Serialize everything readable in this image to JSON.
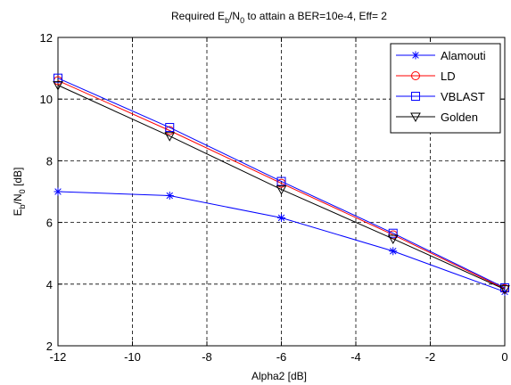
{
  "chart_data": {
    "type": "line",
    "title": {
      "prefix": "Required E",
      "sub1": "b",
      "mid": "/N",
      "sub2": "0",
      "suffix": " to attain a BER=10e-4, Eff= 2"
    },
    "xlabel": "Alpha2 [dB]",
    "ylabel": {
      "prefix": "E",
      "sub1": "b",
      "mid": "/N",
      "sub2": "0",
      "suffix": " [dB]"
    },
    "xlim": [
      -12,
      0
    ],
    "ylim": [
      2,
      12
    ],
    "xticks": [
      "-12",
      "-10",
      "-8",
      "-6",
      "-4",
      "-2",
      "0"
    ],
    "yticks": [
      "2",
      "4",
      "6",
      "8",
      "10",
      "12"
    ],
    "grid": true,
    "legend_position": "top-right",
    "x": [
      -12,
      -9,
      -6,
      -3,
      0
    ],
    "series": [
      {
        "name": "Alamouti",
        "color": "#0000ff",
        "marker": "star",
        "values": [
          7.0,
          6.87,
          6.15,
          5.07,
          3.75
        ]
      },
      {
        "name": "LD",
        "color": "#ff0000",
        "marker": "circle",
        "values": [
          10.6,
          8.98,
          7.27,
          5.6,
          3.85
        ]
      },
      {
        "name": "VBLAST",
        "color": "#0000ff",
        "marker": "square",
        "values": [
          10.68,
          9.08,
          7.33,
          5.65,
          3.88
        ]
      },
      {
        "name": "Golden",
        "color": "#000000",
        "marker": "triangle-down",
        "values": [
          10.45,
          8.8,
          7.07,
          5.47,
          3.83
        ]
      }
    ]
  }
}
